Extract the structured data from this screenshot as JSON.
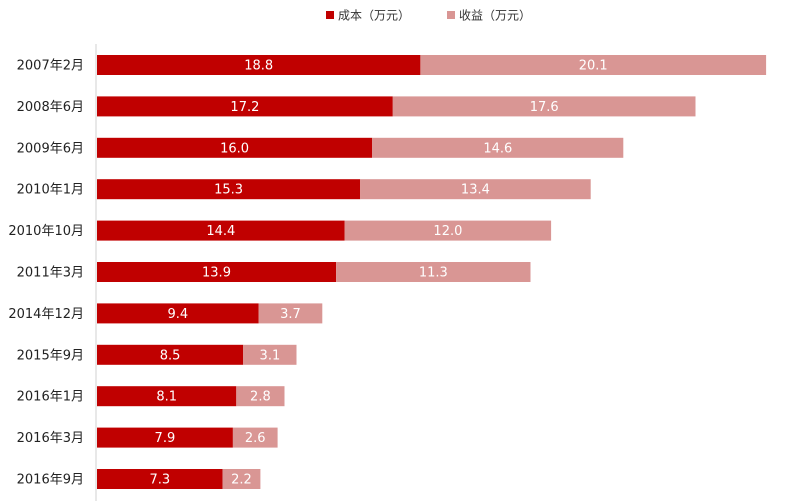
{
  "chart_data": {
    "type": "bar",
    "orientation": "horizontal",
    "stacked": true,
    "categories": [
      "2007年2月",
      "2008年6月",
      "2009年6月",
      "2010年1月",
      "2010年10月",
      "2011年3月",
      "2014年12月",
      "2015年9月",
      "2016年1月",
      "2016年3月",
      "2016年9月"
    ],
    "series": [
      {
        "name": "成本（万元）",
        "color": "#c00000",
        "values": [
          18.8,
          17.2,
          16.0,
          15.3,
          14.4,
          13.9,
          9.4,
          8.5,
          8.1,
          7.9,
          7.3
        ]
      },
      {
        "name": "收益（万元）",
        "color": "#d99694",
        "values": [
          20.1,
          17.6,
          14.6,
          13.4,
          12.0,
          11.3,
          3.7,
          3.1,
          2.8,
          2.6,
          2.2
        ]
      }
    ],
    "legend_position": "top",
    "grid": false,
    "xlim": [
      0,
      40
    ]
  }
}
